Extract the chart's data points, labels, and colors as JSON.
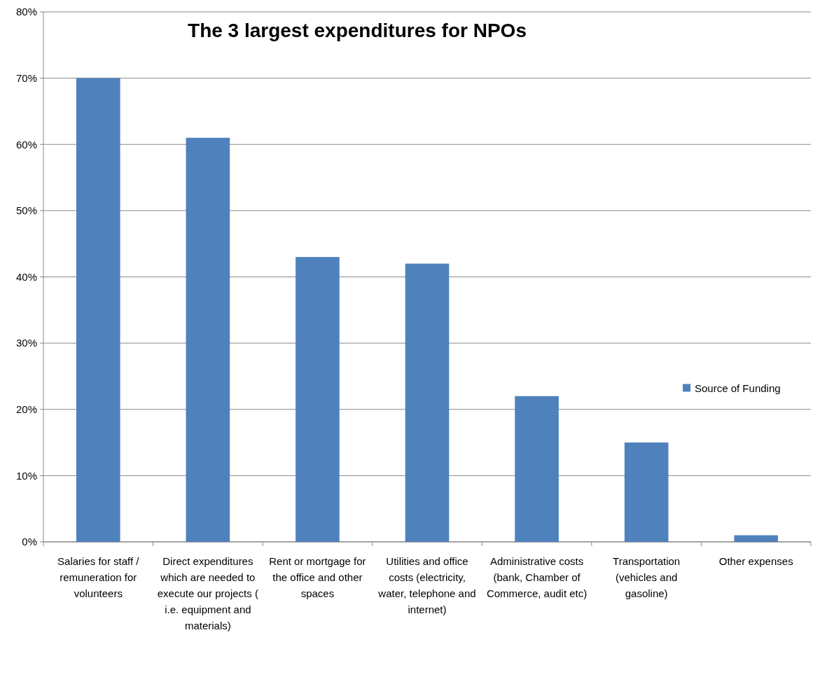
{
  "chart_data": {
    "type": "bar",
    "title": "The 3 largest expenditures for NPOs",
    "categories": [
      "Salaries for staff / remuneration for volunteers",
      "Direct expenditures which are needed to execute our projects ( i.e. equipment and materials)",
      "Rent or mortgage for the office and other spaces",
      "Utilities and office costs (electricity, water, telephone and internet)",
      "Administrative costs (bank, Chamber of Commerce, audit etc)",
      "Transportation (vehicles and gasoline)",
      "Other expenses"
    ],
    "series": [
      {
        "name": "Source of Funding",
        "color": "#4f81bd",
        "values": [
          70,
          61,
          43,
          42,
          22,
          15,
          1
        ]
      }
    ],
    "ylim": [
      0,
      80
    ],
    "yticks": [
      {
        "value": 0,
        "label": "0%"
      },
      {
        "value": 10,
        "label": "10%"
      },
      {
        "value": 20,
        "label": "20%"
      },
      {
        "value": 30,
        "label": "30%"
      },
      {
        "value": 40,
        "label": "40%"
      },
      {
        "value": 50,
        "label": "50%"
      },
      {
        "value": 60,
        "label": "60%"
      },
      {
        "value": 70,
        "label": "70%"
      },
      {
        "value": 80,
        "label": "80%"
      }
    ],
    "grid": "y",
    "legend": "right"
  }
}
